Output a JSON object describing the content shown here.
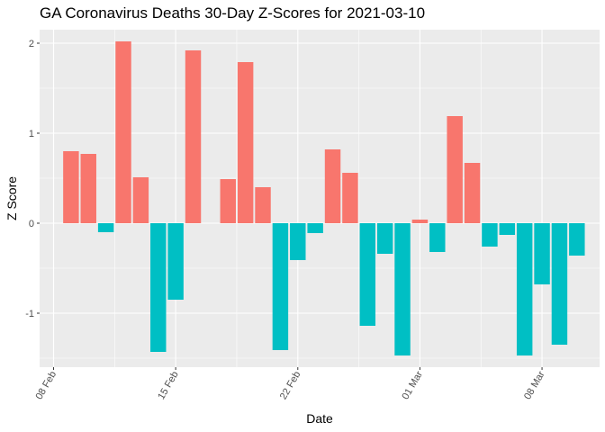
{
  "chart_data": {
    "type": "bar",
    "title": "GA Coronavirus Deaths 30-Day Z-Scores for 2021-03-10",
    "xlabel": "Date",
    "ylabel": "Z Score",
    "x_start": "2021-02-09",
    "dates": [
      "2021-02-09",
      "2021-02-10",
      "2021-02-11",
      "2021-02-12",
      "2021-02-13",
      "2021-02-14",
      "2021-02-15",
      "2021-02-16",
      "2021-02-17",
      "2021-02-18",
      "2021-02-19",
      "2021-02-20",
      "2021-02-21",
      "2021-02-22",
      "2021-02-23",
      "2021-02-24",
      "2021-02-25",
      "2021-02-26",
      "2021-02-27",
      "2021-02-28",
      "2021-03-01",
      "2021-03-02",
      "2021-03-03",
      "2021-03-04",
      "2021-03-05",
      "2021-03-06",
      "2021-03-07",
      "2021-03-08",
      "2021-03-09",
      "2021-03-10"
    ],
    "values": [
      0.8,
      0.77,
      -0.1,
      2.02,
      0.51,
      -1.43,
      -0.85,
      1.92,
      null,
      0.49,
      1.79,
      0.4,
      -1.41,
      -0.41,
      -0.11,
      0.82,
      0.56,
      -1.14,
      -0.34,
      -1.47,
      0.04,
      -0.32,
      1.19,
      0.67,
      -0.26,
      -0.13,
      -1.47,
      -0.68,
      -1.35,
      -0.36
    ],
    "x_ticks": [
      {
        "date": "2021-02-08",
        "label": "08 Feb"
      },
      {
        "date": "2021-02-15",
        "label": "15 Feb"
      },
      {
        "date": "2021-02-22",
        "label": "22 Feb"
      },
      {
        "date": "2021-03-01",
        "label": "01 Mar"
      },
      {
        "date": "2021-03-08",
        "label": "08 Mar"
      }
    ],
    "y_ticks": [
      {
        "value": -1,
        "label": "-1"
      },
      {
        "value": 0,
        "label": "0"
      },
      {
        "value": 1,
        "label": "1"
      },
      {
        "value": 2,
        "label": "2"
      }
    ],
    "xlim": [
      "2021-02-07.2",
      "2021-03-11.3"
    ],
    "ylim": [
      -1.6,
      2.15
    ],
    "legend": "none",
    "grid": true,
    "colors": {
      "positive": "#F8766D",
      "negative": "#00BFC4",
      "panel": "#EBEBEB",
      "grid": "#FFFFFF",
      "tick": "#333333"
    }
  }
}
